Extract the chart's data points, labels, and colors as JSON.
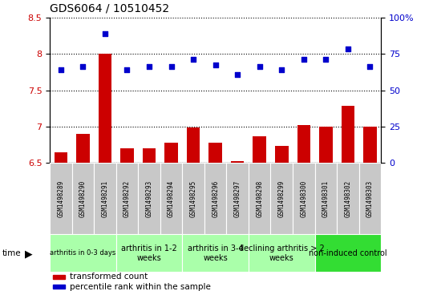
{
  "title": "GDS6064 / 10510452",
  "samples": [
    "GSM1498289",
    "GSM1498290",
    "GSM1498291",
    "GSM1498292",
    "GSM1498293",
    "GSM1498294",
    "GSM1498295",
    "GSM1498296",
    "GSM1498297",
    "GSM1498298",
    "GSM1498299",
    "GSM1498300",
    "GSM1498301",
    "GSM1498302",
    "GSM1498303"
  ],
  "bar_values": [
    6.65,
    6.9,
    8.0,
    6.7,
    6.7,
    6.78,
    6.99,
    6.78,
    6.52,
    6.87,
    6.73,
    7.02,
    7.0,
    7.28,
    7.0
  ],
  "scatter_pct": [
    64,
    66.5,
    89,
    64,
    66,
    66,
    71,
    67.5,
    61,
    66.5,
    64,
    71,
    71,
    78.5,
    66.5
  ],
  "bar_color": "#cc0000",
  "scatter_color": "#0000cc",
  "ylim_left": [
    6.5,
    8.5
  ],
  "ylim_right": [
    0,
    100
  ],
  "yticks_left": [
    6.5,
    7.0,
    7.5,
    8.0,
    8.5
  ],
  "ytick_labels_left": [
    "6.5",
    "7",
    "7.5",
    "8",
    "8.5"
  ],
  "yticks_right": [
    0,
    25,
    50,
    75,
    100
  ],
  "ytick_labels_right": [
    "0",
    "25",
    "50",
    "75",
    "100%"
  ],
  "groups": [
    {
      "label": "arthritis in 0-3 days",
      "start": 0,
      "end": 3,
      "color": "#aaffaa",
      "small_font": true
    },
    {
      "label": "arthritis in 1-2\nweeks",
      "start": 3,
      "end": 6,
      "color": "#aaffaa",
      "small_font": false
    },
    {
      "label": "arthritis in 3-4\nweeks",
      "start": 6,
      "end": 9,
      "color": "#aaffaa",
      "small_font": false
    },
    {
      "label": "declining arthritis > 2\nweeks",
      "start": 9,
      "end": 12,
      "color": "#aaffaa",
      "small_font": false
    },
    {
      "label": "non-induced control",
      "start": 12,
      "end": 15,
      "color": "#33dd33",
      "small_font": false
    }
  ],
  "sample_box_color": "#c8c8c8",
  "plot_bg_color": "#ffffff",
  "fig_bg_color": "#ffffff",
  "grid_color": "#000000",
  "legend_items": [
    {
      "label": "transformed count",
      "color": "#cc0000"
    },
    {
      "label": "percentile rank within the sample",
      "color": "#0000cc"
    }
  ]
}
